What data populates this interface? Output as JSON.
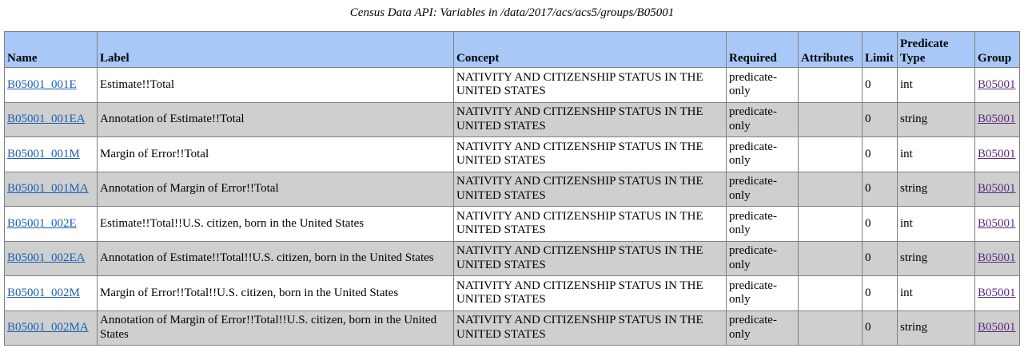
{
  "caption": "Census Data API: Variables in /data/2017/acs/acs5/groups/B05001",
  "headers": {
    "name": "Name",
    "label": "Label",
    "concept": "Concept",
    "required": "Required",
    "attributes": "Attributes",
    "limit": "Limit",
    "predicate_type": "Predicate Type",
    "group": "Group"
  },
  "rows": [
    {
      "name": "B05001_001E",
      "label": "Estimate!!Total",
      "concept": "NATIVITY AND CITIZENSHIP STATUS IN THE UNITED STATES",
      "required": "predicate-only",
      "attributes": "",
      "limit": "0",
      "predicate_type": "int",
      "group": "B05001"
    },
    {
      "name": "B05001_001EA",
      "label": "Annotation of Estimate!!Total",
      "concept": "NATIVITY AND CITIZENSHIP STATUS IN THE UNITED STATES",
      "required": "predicate-only",
      "attributes": "",
      "limit": "0",
      "predicate_type": "string",
      "group": "B05001"
    },
    {
      "name": "B05001_001M",
      "label": "Margin of Error!!Total",
      "concept": "NATIVITY AND CITIZENSHIP STATUS IN THE UNITED STATES",
      "required": "predicate-only",
      "attributes": "",
      "limit": "0",
      "predicate_type": "int",
      "group": "B05001"
    },
    {
      "name": "B05001_001MA",
      "label": "Annotation of Margin of Error!!Total",
      "concept": "NATIVITY AND CITIZENSHIP STATUS IN THE UNITED STATES",
      "required": "predicate-only",
      "attributes": "",
      "limit": "0",
      "predicate_type": "string",
      "group": "B05001"
    },
    {
      "name": "B05001_002E",
      "label": "Estimate!!Total!!U.S. citizen, born in the United States",
      "concept": "NATIVITY AND CITIZENSHIP STATUS IN THE UNITED STATES",
      "required": "predicate-only",
      "attributes": "",
      "limit": "0",
      "predicate_type": "int",
      "group": "B05001"
    },
    {
      "name": "B05001_002EA",
      "label": "Annotation of Estimate!!Total!!U.S. citizen, born in the United States",
      "concept": "NATIVITY AND CITIZENSHIP STATUS IN THE UNITED STATES",
      "required": "predicate-only",
      "attributes": "",
      "limit": "0",
      "predicate_type": "string",
      "group": "B05001"
    },
    {
      "name": "B05001_002M",
      "label": "Margin of Error!!Total!!U.S. citizen, born in the United States",
      "concept": "NATIVITY AND CITIZENSHIP STATUS IN THE UNITED STATES",
      "required": "predicate-only",
      "attributes": "",
      "limit": "0",
      "predicate_type": "int",
      "group": "B05001"
    },
    {
      "name": "B05001_002MA",
      "label": "Annotation of Margin of Error!!Total!!U.S. citizen, born in the United States",
      "concept": "NATIVITY AND CITIZENSHIP STATUS IN THE UNITED STATES",
      "required": "predicate-only",
      "attributes": "",
      "limit": "0",
      "predicate_type": "string",
      "group": "B05001"
    }
  ]
}
